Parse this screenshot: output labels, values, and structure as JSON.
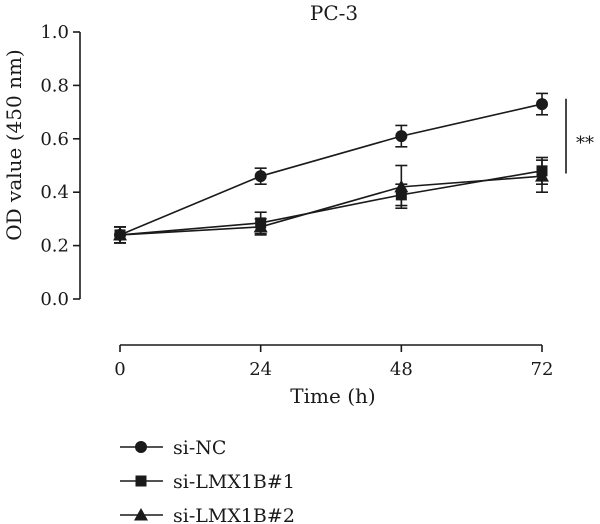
{
  "chart_data": {
    "type": "line",
    "title": "PC-3",
    "xlabel": "Time (h)",
    "ylabel": "OD value (450 nm)",
    "x": [
      0,
      24,
      48,
      72
    ],
    "x_tick_labels": [
      "0",
      "24",
      "48",
      "72"
    ],
    "y_tick_labels": [
      "0.0",
      "0.2",
      "0.4",
      "0.6",
      "0.8",
      "1.0"
    ],
    "xlim": [
      0,
      72
    ],
    "ylim": [
      0,
      1.0
    ],
    "grid": false,
    "legend_position": "bottom-left",
    "significance_label": "**",
    "color": "#1a1a1a",
    "series": [
      {
        "name": "si-NC",
        "marker": "circle",
        "values": [
          0.24,
          0.46,
          0.61,
          0.73
        ],
        "errors": [
          0.03,
          0.03,
          0.04,
          0.04
        ]
      },
      {
        "name": "si-LMX1B#1",
        "marker": "square",
        "values": [
          0.24,
          0.285,
          0.39,
          0.48
        ],
        "errors": [
          0.03,
          0.04,
          0.04,
          0.05
        ]
      },
      {
        "name": "si-LMX1B#2",
        "marker": "triangle",
        "values": [
          0.24,
          0.27,
          0.42,
          0.46
        ],
        "errors": [
          0.03,
          0.03,
          0.08,
          0.06
        ]
      }
    ]
  }
}
